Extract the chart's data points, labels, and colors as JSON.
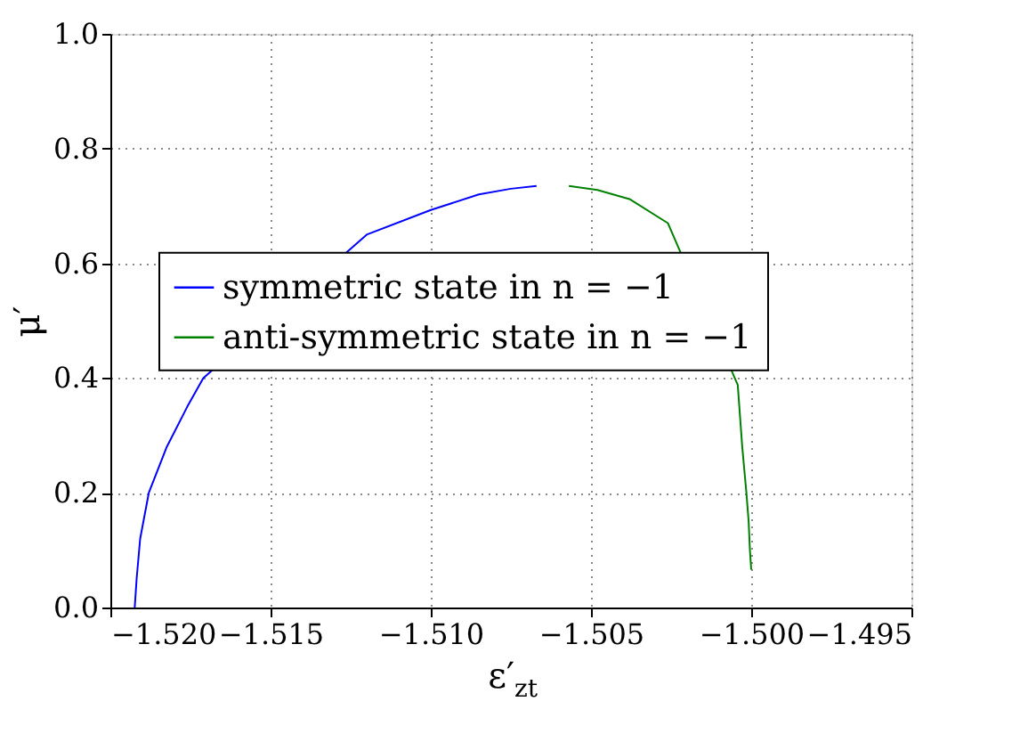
{
  "chart_data": {
    "type": "line",
    "xlabel": "ε′$_{zt}$",
    "ylabel": "μ′",
    "xlim": [
      -1.52,
      -1.495
    ],
    "ylim": [
      0,
      1
    ],
    "xticks": [
      {
        "value": -1.52,
        "label": "−1.520"
      },
      {
        "value": -1.515,
        "label": "−1.515"
      },
      {
        "value": -1.51,
        "label": "−1.510"
      },
      {
        "value": -1.505,
        "label": "−1.505"
      },
      {
        "value": -1.5,
        "label": "−1.500"
      },
      {
        "value": -1.495,
        "label": "−1.495"
      }
    ],
    "yticks": [
      {
        "value": 0,
        "label": "0.0"
      },
      {
        "value": 0.2,
        "label": "0.2"
      },
      {
        "value": 0.4,
        "label": "0.4"
      },
      {
        "value": 0.6,
        "label": "0.6"
      },
      {
        "value": 0.8,
        "label": "0.8"
      },
      {
        "value": 1,
        "label": "1.0"
      }
    ],
    "grid": true,
    "legend": "center",
    "marker": "none",
    "line_style": "solid",
    "series": [
      {
        "name": "symmetric state in n = −1",
        "color": "#0000ff",
        "x": [
          -1.51924,
          -1.51918,
          -1.51907,
          -1.5188,
          -1.51824,
          -1.5176,
          -1.5171,
          -1.512,
          -1.51,
          -1.5085,
          -1.5075,
          -1.5067
        ],
        "values": [
          0,
          0.05,
          0.12,
          0.2,
          0.28,
          0.35,
          0.4,
          0.65,
          0.693,
          0.72,
          0.73,
          0.735
        ]
      },
      {
        "name": "anti-symmetric state in n = −1",
        "color": "#008000",
        "x": [
          -1.50569,
          -1.5048,
          -1.5038,
          -1.5026,
          -1.50042,
          -1.50028,
          -1.50015,
          -1.50008,
          -1.50004,
          -1.5
        ],
        "values": [
          0.735,
          0.728,
          0.712,
          0.67,
          0.388,
          0.28,
          0.2,
          0.15,
          0.1,
          0.066
        ]
      }
    ]
  }
}
